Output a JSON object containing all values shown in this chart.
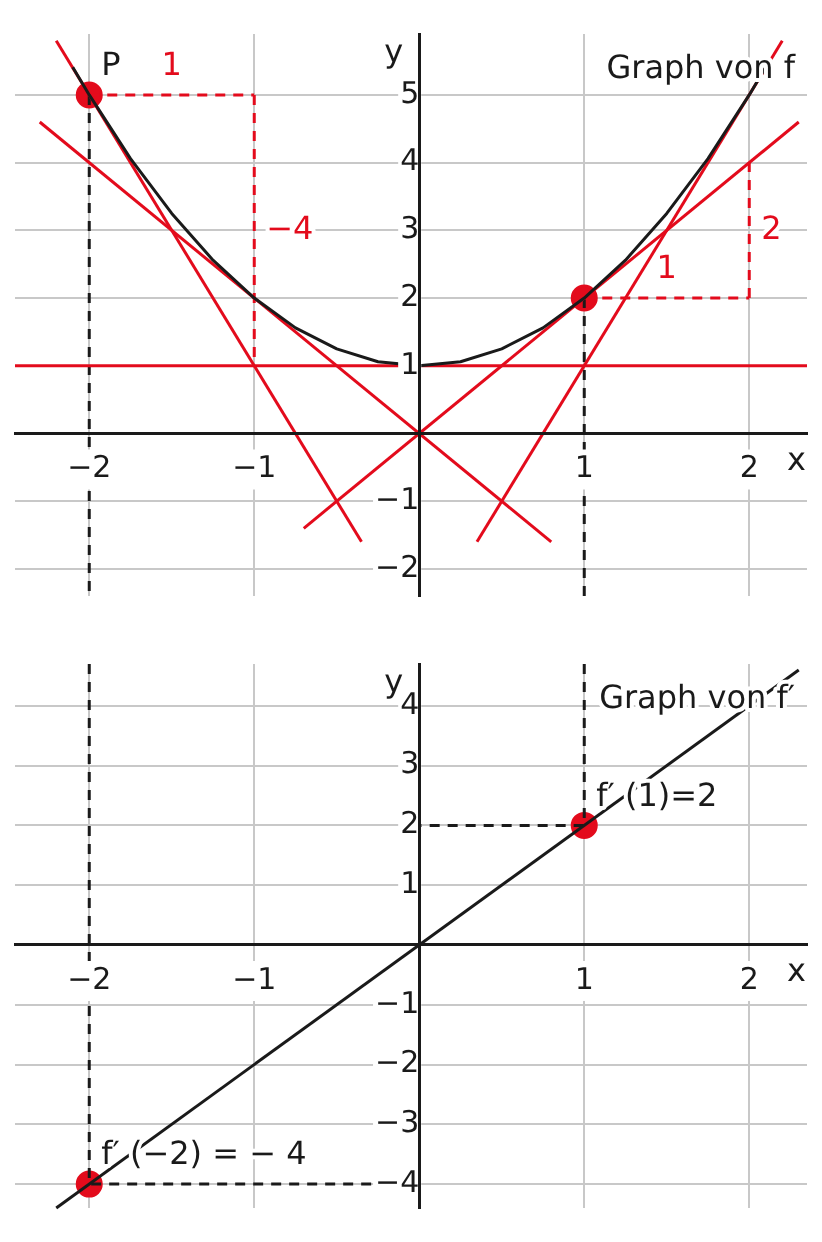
{
  "chart_data": [
    {
      "type": "line",
      "title": "Graph von f",
      "xlabel": "x",
      "ylabel": "y",
      "xlim": [
        -2.45,
        2.35
      ],
      "ylim": [
        -2.4,
        5.9
      ],
      "xticks": [
        -2,
        -1,
        1,
        2
      ],
      "yticks": [
        -2,
        -1,
        1,
        2,
        3,
        4,
        5
      ],
      "grid": true,
      "series": [
        {
          "type": "line",
          "color": "#1a1a1a",
          "line_style": "solid",
          "marker": "none",
          "x": [
            -2.1,
            -2,
            -1.75,
            -1.5,
            -1.25,
            -1,
            -0.75,
            -0.5,
            -0.25,
            0,
            0.25,
            0.5,
            0.75,
            1,
            1.25,
            1.5,
            1.75,
            2,
            2.1
          ],
          "values": [
            5.41,
            5,
            4.06,
            3.25,
            2.56,
            2,
            1.56,
            1.25,
            1.06,
            1,
            1.06,
            1.25,
            1.56,
            2,
            2.56,
            3.25,
            4.06,
            5,
            5.41
          ]
        },
        {
          "type": "line",
          "color": "#e30b1c",
          "line_style": "solid",
          "marker": "none",
          "x": [
            -2.2,
            -0.35
          ],
          "values": [
            5.8,
            -1.6
          ]
        },
        {
          "type": "line",
          "color": "#e30b1c",
          "line_style": "solid",
          "marker": "none",
          "x": [
            -2.3,
            0.8
          ],
          "values": [
            4.6,
            -1.6
          ]
        },
        {
          "type": "line",
          "color": "#e30b1c",
          "line_style": "solid",
          "marker": "none",
          "x": [
            -2.45,
            2.35
          ],
          "values": [
            1,
            1
          ]
        },
        {
          "type": "line",
          "color": "#e30b1c",
          "line_style": "solid",
          "marker": "none",
          "x": [
            -0.7,
            2.3
          ],
          "values": [
            -1.4,
            4.6
          ]
        },
        {
          "type": "line",
          "color": "#e30b1c",
          "line_style": "solid",
          "marker": "none",
          "x": [
            0.35,
            2.2
          ],
          "values": [
            -1.6,
            5.8
          ]
        },
        {
          "type": "line",
          "name": "1",
          "color": "#e30b1c",
          "line_style": "dashed",
          "marker": "none",
          "x": [
            -2,
            -1
          ],
          "values": [
            5,
            5
          ]
        },
        {
          "type": "line",
          "name": "−4",
          "color": "#e30b1c",
          "line_style": "dashed",
          "marker": "none",
          "x": [
            -1,
            -1
          ],
          "values": [
            5,
            1
          ]
        },
        {
          "type": "line",
          "name": "1",
          "color": "#e30b1c",
          "line_style": "dashed",
          "marker": "none",
          "x": [
            1,
            2
          ],
          "values": [
            2,
            2
          ]
        },
        {
          "type": "line",
          "name": "2",
          "color": "#e30b1c",
          "line_style": "dashed",
          "marker": "none",
          "x": [
            2,
            2
          ],
          "values": [
            2,
            4
          ]
        },
        {
          "type": "line",
          "color": "#1a1a1a",
          "line_style": "dashed",
          "marker": "none",
          "x": [
            -2,
            -2
          ],
          "values": [
            5,
            -2.4
          ]
        },
        {
          "type": "line",
          "color": "#1a1a1a",
          "line_style": "dashed",
          "marker": "none",
          "x": [
            1,
            1
          ],
          "values": [
            2,
            -2.4
          ]
        },
        {
          "type": "scatter",
          "name": "P",
          "color": "#e30b1c",
          "marker": "circle",
          "x": [
            -2
          ],
          "values": [
            5
          ]
        },
        {
          "type": "scatter",
          "color": "#e30b1c",
          "marker": "circle",
          "x": [
            1
          ],
          "values": [
            2
          ]
        }
      ]
    },
    {
      "type": "line",
      "title": "Graph von f′",
      "xlabel": "x",
      "ylabel": "y",
      "xlim": [
        -2.45,
        2.35
      ],
      "ylim": [
        -4.4,
        4.7
      ],
      "xticks": [
        -2,
        -1,
        1,
        2
      ],
      "yticks": [
        -4,
        -3,
        -2,
        -1,
        1,
        2,
        3,
        4
      ],
      "grid": true,
      "series": [
        {
          "type": "line",
          "color": "#1a1a1a",
          "line_style": "solid",
          "marker": "none",
          "x": [
            -2.2,
            2.3
          ],
          "values": [
            -4.4,
            4.6
          ]
        },
        {
          "type": "line",
          "color": "#1a1a1a",
          "line_style": "dashed",
          "marker": "none",
          "x": [
            1,
            1,
            0
          ],
          "values": [
            4.7,
            2,
            2
          ]
        },
        {
          "type": "line",
          "color": "#1a1a1a",
          "line_style": "dashed",
          "marker": "none",
          "x": [
            -2,
            -2,
            0
          ],
          "values": [
            4.7,
            -4,
            -4
          ]
        },
        {
          "type": "scatter",
          "name": "f′ (−2) = − 4",
          "color": "#e30b1c",
          "marker": "circle",
          "x": [
            -2
          ],
          "values": [
            -4
          ]
        },
        {
          "type": "scatter",
          "name": "f′ (1)=2",
          "color": "#e30b1c",
          "marker": "circle",
          "x": [
            1
          ],
          "values": [
            2
          ]
        }
      ]
    }
  ]
}
